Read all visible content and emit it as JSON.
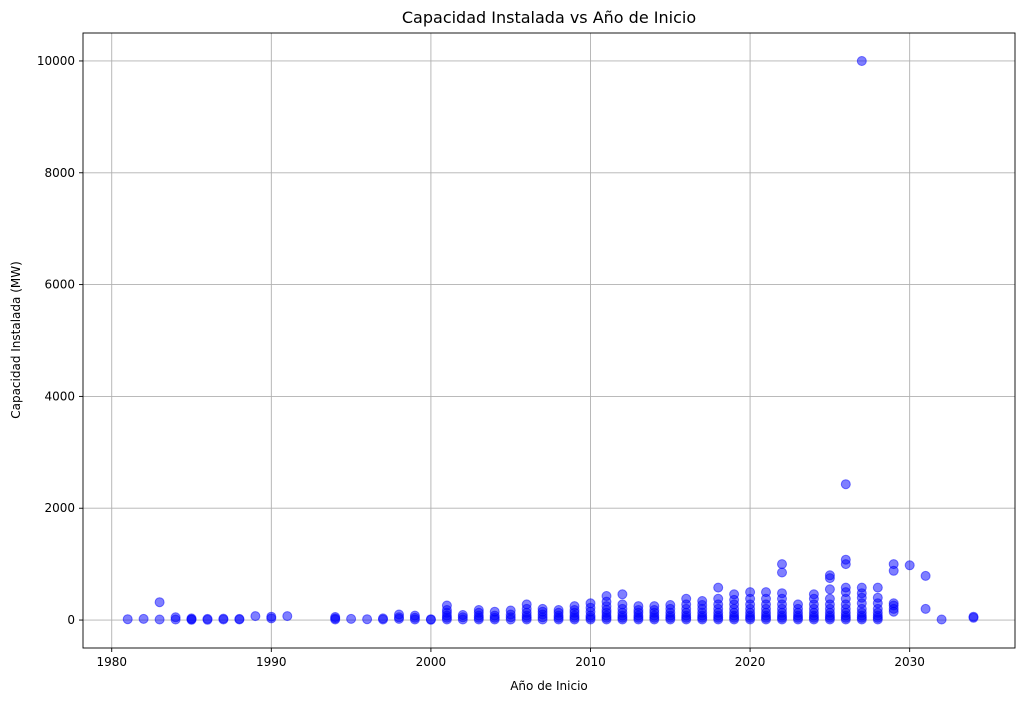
{
  "chart_data": {
    "type": "scatter",
    "title": "Capacidad Instalada vs Año de Inicio",
    "xlabel": "Año de Inicio",
    "ylabel": "Capacidad Instalada (MW)",
    "xlim": [
      1978.2,
      2036.6
    ],
    "ylim": [
      -500,
      10500
    ],
    "xticks": [
      1980,
      1990,
      2000,
      2010,
      2020,
      2030
    ],
    "yticks": [
      0,
      2000,
      4000,
      6000,
      8000,
      10000
    ],
    "grid": true,
    "marker_color": "#0000ff",
    "marker_alpha": 0.5,
    "points": [
      [
        1981,
        15
      ],
      [
        1982,
        20
      ],
      [
        1983,
        10
      ],
      [
        1983,
        320
      ],
      [
        1984,
        10
      ],
      [
        1984,
        50
      ],
      [
        1985,
        5
      ],
      [
        1985,
        15
      ],
      [
        1985,
        30
      ],
      [
        1986,
        5
      ],
      [
        1986,
        20
      ],
      [
        1987,
        10
      ],
      [
        1987,
        25
      ],
      [
        1988,
        10
      ],
      [
        1988,
        20
      ],
      [
        1989,
        70
      ],
      [
        1990,
        30
      ],
      [
        1990,
        60
      ],
      [
        1991,
        70
      ],
      [
        1994,
        10
      ],
      [
        1994,
        30
      ],
      [
        1994,
        55
      ],
      [
        1995,
        20
      ],
      [
        1996,
        15
      ],
      [
        1997,
        10
      ],
      [
        1997,
        30
      ],
      [
        1998,
        20
      ],
      [
        1998,
        50
      ],
      [
        1998,
        100
      ],
      [
        1999,
        10
      ],
      [
        1999,
        40
      ],
      [
        1999,
        80
      ],
      [
        2000,
        5
      ],
      [
        2000,
        15
      ],
      [
        2001,
        10
      ],
      [
        2001,
        40
      ],
      [
        2001,
        80
      ],
      [
        2001,
        130
      ],
      [
        2001,
        180
      ],
      [
        2001,
        260
      ],
      [
        2002,
        10
      ],
      [
        2002,
        50
      ],
      [
        2002,
        90
      ],
      [
        2003,
        10
      ],
      [
        2003,
        40
      ],
      [
        2003,
        80
      ],
      [
        2003,
        130
      ],
      [
        2003,
        180
      ],
      [
        2004,
        10
      ],
      [
        2004,
        40
      ],
      [
        2004,
        80
      ],
      [
        2004,
        150
      ],
      [
        2005,
        10
      ],
      [
        2005,
        50
      ],
      [
        2005,
        100
      ],
      [
        2005,
        170
      ],
      [
        2006,
        10
      ],
      [
        2006,
        40
      ],
      [
        2006,
        80
      ],
      [
        2006,
        130
      ],
      [
        2006,
        200
      ],
      [
        2006,
        280
      ],
      [
        2007,
        10
      ],
      [
        2007,
        50
      ],
      [
        2007,
        100
      ],
      [
        2007,
        150
      ],
      [
        2007,
        200
      ],
      [
        2008,
        10
      ],
      [
        2008,
        40
      ],
      [
        2008,
        80
      ],
      [
        2008,
        130
      ],
      [
        2008,
        180
      ],
      [
        2009,
        10
      ],
      [
        2009,
        40
      ],
      [
        2009,
        80
      ],
      [
        2009,
        130
      ],
      [
        2009,
        180
      ],
      [
        2009,
        250
      ],
      [
        2010,
        10
      ],
      [
        2010,
        40
      ],
      [
        2010,
        80
      ],
      [
        2010,
        150
      ],
      [
        2010,
        220
      ],
      [
        2010,
        300
      ],
      [
        2011,
        10
      ],
      [
        2011,
        40
      ],
      [
        2011,
        80
      ],
      [
        2011,
        130
      ],
      [
        2011,
        180
      ],
      [
        2011,
        250
      ],
      [
        2011,
        330
      ],
      [
        2011,
        430
      ],
      [
        2012,
        10
      ],
      [
        2012,
        40
      ],
      [
        2012,
        80
      ],
      [
        2012,
        130
      ],
      [
        2012,
        200
      ],
      [
        2012,
        280
      ],
      [
        2012,
        460
      ],
      [
        2013,
        10
      ],
      [
        2013,
        40
      ],
      [
        2013,
        80
      ],
      [
        2013,
        130
      ],
      [
        2013,
        180
      ],
      [
        2013,
        250
      ],
      [
        2014,
        10
      ],
      [
        2014,
        40
      ],
      [
        2014,
        80
      ],
      [
        2014,
        130
      ],
      [
        2014,
        180
      ],
      [
        2014,
        250
      ],
      [
        2015,
        10
      ],
      [
        2015,
        40
      ],
      [
        2015,
        80
      ],
      [
        2015,
        130
      ],
      [
        2015,
        200
      ],
      [
        2015,
        270
      ],
      [
        2016,
        10
      ],
      [
        2016,
        40
      ],
      [
        2016,
        80
      ],
      [
        2016,
        130
      ],
      [
        2016,
        200
      ],
      [
        2016,
        280
      ],
      [
        2016,
        380
      ],
      [
        2017,
        10
      ],
      [
        2017,
        40
      ],
      [
        2017,
        80
      ],
      [
        2017,
        130
      ],
      [
        2017,
        200
      ],
      [
        2017,
        270
      ],
      [
        2017,
        340
      ],
      [
        2018,
        10
      ],
      [
        2018,
        40
      ],
      [
        2018,
        80
      ],
      [
        2018,
        130
      ],
      [
        2018,
        200
      ],
      [
        2018,
        280
      ],
      [
        2018,
        380
      ],
      [
        2018,
        580
      ],
      [
        2019,
        10
      ],
      [
        2019,
        40
      ],
      [
        2019,
        80
      ],
      [
        2019,
        130
      ],
      [
        2019,
        200
      ],
      [
        2019,
        280
      ],
      [
        2019,
        360
      ],
      [
        2019,
        460
      ],
      [
        2020,
        10
      ],
      [
        2020,
        40
      ],
      [
        2020,
        80
      ],
      [
        2020,
        130
      ],
      [
        2020,
        200
      ],
      [
        2020,
        280
      ],
      [
        2020,
        380
      ],
      [
        2020,
        500
      ],
      [
        2021,
        10
      ],
      [
        2021,
        40
      ],
      [
        2021,
        80
      ],
      [
        2021,
        130
      ],
      [
        2021,
        200
      ],
      [
        2021,
        280
      ],
      [
        2021,
        380
      ],
      [
        2021,
        500
      ],
      [
        2022,
        10
      ],
      [
        2022,
        40
      ],
      [
        2022,
        80
      ],
      [
        2022,
        130
      ],
      [
        2022,
        200
      ],
      [
        2022,
        280
      ],
      [
        2022,
        380
      ],
      [
        2022,
        480
      ],
      [
        2022,
        850
      ],
      [
        2022,
        1000
      ],
      [
        2023,
        10
      ],
      [
        2023,
        40
      ],
      [
        2023,
        80
      ],
      [
        2023,
        130
      ],
      [
        2023,
        200
      ],
      [
        2023,
        280
      ],
      [
        2024,
        10
      ],
      [
        2024,
        40
      ],
      [
        2024,
        80
      ],
      [
        2024,
        130
      ],
      [
        2024,
        200
      ],
      [
        2024,
        280
      ],
      [
        2024,
        380
      ],
      [
        2024,
        460
      ],
      [
        2025,
        10
      ],
      [
        2025,
        40
      ],
      [
        2025,
        80
      ],
      [
        2025,
        130
      ],
      [
        2025,
        200
      ],
      [
        2025,
        280
      ],
      [
        2025,
        380
      ],
      [
        2025,
        550
      ],
      [
        2025,
        750
      ],
      [
        2025,
        800
      ],
      [
        2026,
        10
      ],
      [
        2026,
        40
      ],
      [
        2026,
        80
      ],
      [
        2026,
        130
      ],
      [
        2026,
        200
      ],
      [
        2026,
        280
      ],
      [
        2026,
        380
      ],
      [
        2026,
        500
      ],
      [
        2026,
        580
      ],
      [
        2026,
        1000
      ],
      [
        2026,
        1080
      ],
      [
        2026,
        2430
      ],
      [
        2027,
        10
      ],
      [
        2027,
        40
      ],
      [
        2027,
        80
      ],
      [
        2027,
        130
      ],
      [
        2027,
        200
      ],
      [
        2027,
        300
      ],
      [
        2027,
        400
      ],
      [
        2027,
        480
      ],
      [
        2027,
        580
      ],
      [
        2027,
        10000
      ],
      [
        2028,
        10
      ],
      [
        2028,
        40
      ],
      [
        2028,
        80
      ],
      [
        2028,
        130
      ],
      [
        2028,
        200
      ],
      [
        2028,
        300
      ],
      [
        2028,
        400
      ],
      [
        2028,
        580
      ],
      [
        2029,
        150
      ],
      [
        2029,
        200
      ],
      [
        2029,
        260
      ],
      [
        2029,
        300
      ],
      [
        2029,
        880
      ],
      [
        2029,
        1000
      ],
      [
        2030,
        980
      ],
      [
        2031,
        200
      ],
      [
        2031,
        790
      ],
      [
        2032,
        10
      ],
      [
        2034,
        40
      ],
      [
        2034,
        60
      ]
    ]
  }
}
